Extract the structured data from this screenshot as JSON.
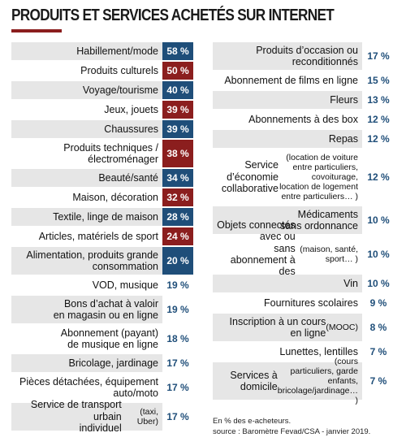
{
  "title": "PRODUITS ET SERVICES ACHETÉS SUR INTERNET",
  "colors": {
    "blue": "#1f4e79",
    "red": "#8b1e1e",
    "shade": "#e6e6e6",
    "accent": "#8b1e1e"
  },
  "chart_data": {
    "type": "table",
    "title": "PRODUITS ET SERVICES ACHETÉS SUR INTERNET",
    "unit": "%",
    "left": [
      {
        "label": "Habillement/mode",
        "value_label": "58 %",
        "value": 58,
        "color": "blue"
      },
      {
        "label": "Produits culturels",
        "value_label": "50 %",
        "value": 50,
        "color": "red"
      },
      {
        "label": "Voyage/tourisme",
        "value_label": "40 %",
        "value": 40,
        "color": "blue"
      },
      {
        "label": "Jeux, jouets",
        "value_label": "39 %",
        "value": 39,
        "color": "red"
      },
      {
        "label": "Chaussures",
        "value_label": "39 %",
        "value": 39,
        "color": "blue"
      },
      {
        "label": "Produits techniques /\nélectroménager",
        "value_label": "38 %",
        "value": 38,
        "color": "red"
      },
      {
        "label": "Beauté/santé",
        "value_label": "34 %",
        "value": 34,
        "color": "blue"
      },
      {
        "label": "Maison, décoration",
        "value_label": "32 %",
        "value": 32,
        "color": "red"
      },
      {
        "label": "Textile, linge de maison",
        "value_label": "28 %",
        "value": 28,
        "color": "blue"
      },
      {
        "label": "Articles, matériels de sport",
        "value_label": "24 %",
        "value": 24,
        "color": "red"
      },
      {
        "label": "Alimentation, produits grande\nconsommation",
        "value_label": "20 %",
        "value": 20,
        "color": "blue"
      },
      {
        "label": "VOD, musique",
        "value_label": "19 %",
        "value": 19,
        "color": ""
      },
      {
        "label": "Bons d’achat à valoir\nen magasin ou en ligne",
        "value_label": "19 %",
        "value": 19,
        "color": ""
      },
      {
        "label": "Abonnement (payant)\nde musique en ligne",
        "value_label": "18 %",
        "value": 18,
        "color": ""
      },
      {
        "label": "Bricolage, jardinage",
        "value_label": "17 %",
        "value": 17,
        "color": ""
      },
      {
        "label": "Pièces détachées, équipement\nauto/moto",
        "value_label": "17 %",
        "value": 17,
        "color": ""
      },
      {
        "label": "Service de transport urbain\nindividuel",
        "note": "(taxi, Uber)",
        "value_label": "17 %",
        "value": 17,
        "color": ""
      }
    ],
    "right": [
      {
        "label": "Produits d’occasion ou\nreconditionnés",
        "value_label": "17 %",
        "value": 17
      },
      {
        "label": "Abonnement de films en ligne",
        "value_label": "15 %",
        "value": 15
      },
      {
        "label": "Fleurs",
        "value_label": "13 %",
        "value": 13
      },
      {
        "label": "Abonnements à des box",
        "value_label": "12 %",
        "value": 12
      },
      {
        "label": "Repas",
        "value_label": "12 %",
        "value": 12
      },
      {
        "label": "Service d’économie\ncollaborative",
        "note": "(location de voiture\nentre particuliers, covoiturage,\nlocation de logement\nentre particuliers… )",
        "value_label": "12 %",
        "value": 12
      },
      {
        "label": "Médicaments\nsans ordonnance",
        "value_label": "10 %",
        "value": 10
      },
      {
        "label": "Objets connectés avec ou\nsans abonnement à des\nservices",
        "note": "(maison, santé, sport… )",
        "value_label": "10 %",
        "value": 10
      },
      {
        "label": "Vin",
        "value_label": "10 %",
        "value": 10
      },
      {
        "label": "Fournitures scolaires",
        "value_label": "9 %",
        "value": 9
      },
      {
        "label": "Inscription à un cours\nen ligne",
        "note": "(MOOC)",
        "value_label": "8 %",
        "value": 8
      },
      {
        "label": "Lunettes, lentilles",
        "value_label": "7 %",
        "value": 7
      },
      {
        "label": "Services à domicile",
        "note": "(cours\nparticuliers, garde enfants,\nbricolage/jardinage… )",
        "value_label": "7 %",
        "value": 7
      }
    ]
  },
  "footnote": "En % des e-acheteurs.",
  "source": "source : Baromètre Fevad/CSA - janvier 2019."
}
